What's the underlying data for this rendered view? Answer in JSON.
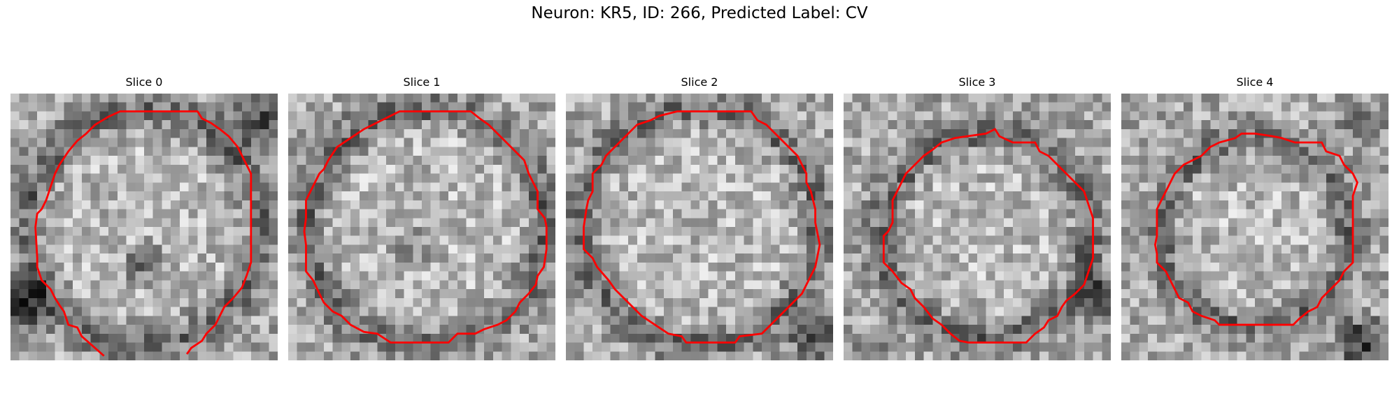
{
  "figure": {
    "title": "Neuron: KR5, ID: 266, Predicted Label: CV",
    "colors": {
      "contour": "#ff0000",
      "background": "#ffffff"
    },
    "slices": [
      {
        "title": "Slice 0"
      },
      {
        "title": "Slice 1"
      },
      {
        "title": "Slice 2"
      },
      {
        "title": "Slice 3"
      },
      {
        "title": "Slice 4"
      }
    ]
  }
}
